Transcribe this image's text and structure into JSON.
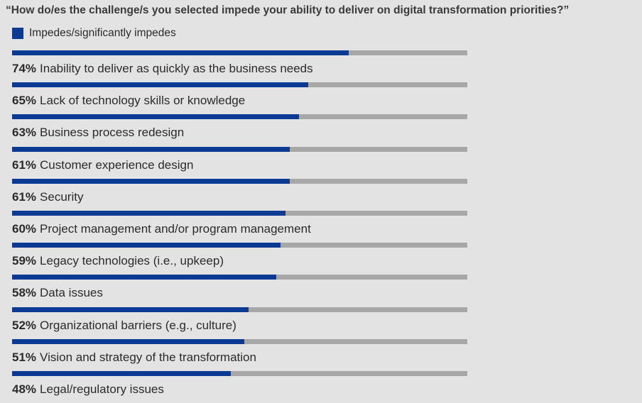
{
  "chart_data": {
    "type": "bar",
    "title": "“How do/es the challenge/s you selected impede your ability to deliver on digital transformation priorities?”",
    "series": [
      {
        "name": "Impedes/significantly impedes",
        "values": [
          74,
          65,
          63,
          61,
          61,
          60,
          59,
          58,
          52,
          51,
          48
        ]
      }
    ],
    "categories": [
      "Inability to deliver as quickly as the business needs",
      "Lack of technology skills or knowledge",
      "Business process redesign",
      "Customer experience design",
      "Security",
      "Project management and/or program management",
      "Legacy technologies (i.e., upkeep)",
      "Data issues",
      "Organizational barriers (e.g., culture)",
      "Vision and strategy of the transformation",
      "Legal/regulatory issues"
    ],
    "value_labels": [
      "74%",
      "65%",
      "63%",
      "61%",
      "61%",
      "60%",
      "59%",
      "58%",
      "52%",
      "51%",
      "48%"
    ],
    "xlim": [
      0,
      100
    ],
    "orientation": "horizontal",
    "legend": "top-left",
    "grid": false,
    "colors": {
      "bar": "#0a3a94",
      "track": "#a7a7a7",
      "background": "#e3e3e3"
    }
  }
}
